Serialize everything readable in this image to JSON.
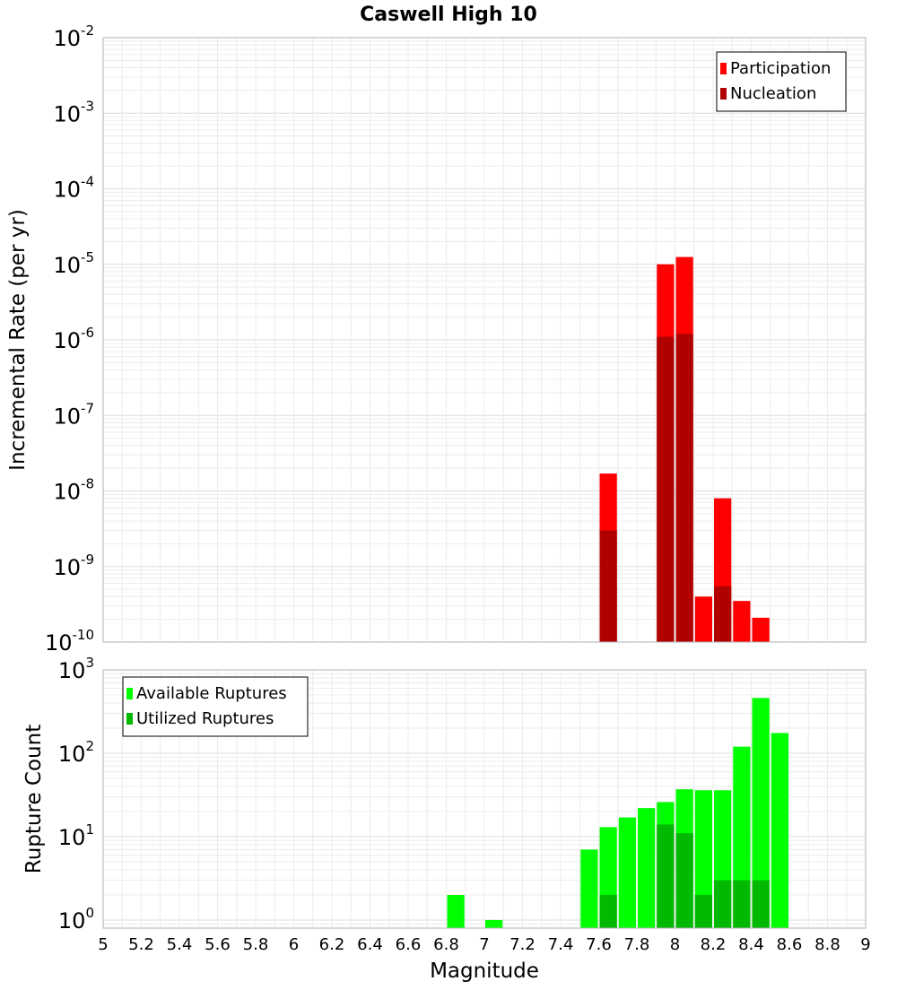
{
  "chart_data": {
    "title": "Caswell High 10",
    "xlabel": "Magnitude",
    "xlim": [
      5,
      9
    ],
    "x_ticks": [
      "5",
      "5.2",
      "5.4",
      "5.6",
      "5.8",
      "6",
      "6.2",
      "6.4",
      "6.6",
      "6.8",
      "7",
      "7.2",
      "7.4",
      "7.6",
      "7.8",
      "8",
      "8.2",
      "8.4",
      "8.6",
      "8.8",
      "9"
    ],
    "bin_width": 0.1,
    "grid": true,
    "panels": [
      {
        "type": "bar",
        "ylabel": "Incremental Rate (per yr)",
        "y_scale": "log",
        "ylim": [
          1e-10,
          0.01
        ],
        "y_ticks": [
          {
            "base": "10",
            "exp": "-10"
          },
          {
            "base": "10",
            "exp": "-9"
          },
          {
            "base": "10",
            "exp": "-8"
          },
          {
            "base": "10",
            "exp": "-7"
          },
          {
            "base": "10",
            "exp": "-6"
          },
          {
            "base": "10",
            "exp": "-5"
          },
          {
            "base": "10",
            "exp": "-4"
          },
          {
            "base": "10",
            "exp": "-3"
          },
          {
            "base": "10",
            "exp": "-2"
          }
        ],
        "legend_position": "top-right",
        "series": [
          {
            "name": "Participation",
            "color": "#ff0000",
            "points": [
              {
                "x": 7.65,
                "y": 1.7e-08
              },
              {
                "x": 7.95,
                "y": 1e-05
              },
              {
                "x": 8.05,
                "y": 1.25e-05
              },
              {
                "x": 8.15,
                "y": 4e-10
              },
              {
                "x": 8.25,
                "y": 8e-09
              },
              {
                "x": 8.35,
                "y": 3.5e-10
              },
              {
                "x": 8.45,
                "y": 2.1e-10
              }
            ]
          },
          {
            "name": "Nucleation",
            "color": "#b00000",
            "points": [
              {
                "x": 7.65,
                "y": 3e-09
              },
              {
                "x": 7.95,
                "y": 1.1e-06
              },
              {
                "x": 8.05,
                "y": 1.2e-06
              },
              {
                "x": 8.25,
                "y": 5.5e-10
              }
            ]
          }
        ]
      },
      {
        "type": "bar",
        "ylabel": "Rupture Count",
        "y_scale": "log",
        "ylim": [
          0.8,
          1000
        ],
        "y_ticks": [
          {
            "base": "10",
            "exp": "0"
          },
          {
            "base": "10",
            "exp": "1"
          },
          {
            "base": "10",
            "exp": "2"
          },
          {
            "base": "10",
            "exp": "3"
          }
        ],
        "legend_position": "top-left",
        "series": [
          {
            "name": "Available Ruptures",
            "color": "#00ff00",
            "points": [
              {
                "x": 6.85,
                "y": 2
              },
              {
                "x": 7.05,
                "y": 1
              },
              {
                "x": 7.55,
                "y": 7
              },
              {
                "x": 7.65,
                "y": 13
              },
              {
                "x": 7.75,
                "y": 17
              },
              {
                "x": 7.85,
                "y": 22
              },
              {
                "x": 7.95,
                "y": 26
              },
              {
                "x": 8.05,
                "y": 37
              },
              {
                "x": 8.15,
                "y": 36
              },
              {
                "x": 8.25,
                "y": 36
              },
              {
                "x": 8.35,
                "y": 120
              },
              {
                "x": 8.45,
                "y": 460
              },
              {
                "x": 8.55,
                "y": 175
              }
            ]
          },
          {
            "name": "Utilized Ruptures",
            "color": "#00b900",
            "points": [
              {
                "x": 7.65,
                "y": 2
              },
              {
                "x": 7.95,
                "y": 14
              },
              {
                "x": 8.05,
                "y": 11
              },
              {
                "x": 8.15,
                "y": 2
              },
              {
                "x": 8.25,
                "y": 3
              },
              {
                "x": 8.35,
                "y": 3
              },
              {
                "x": 8.45,
                "y": 3
              }
            ]
          }
        ]
      }
    ]
  }
}
